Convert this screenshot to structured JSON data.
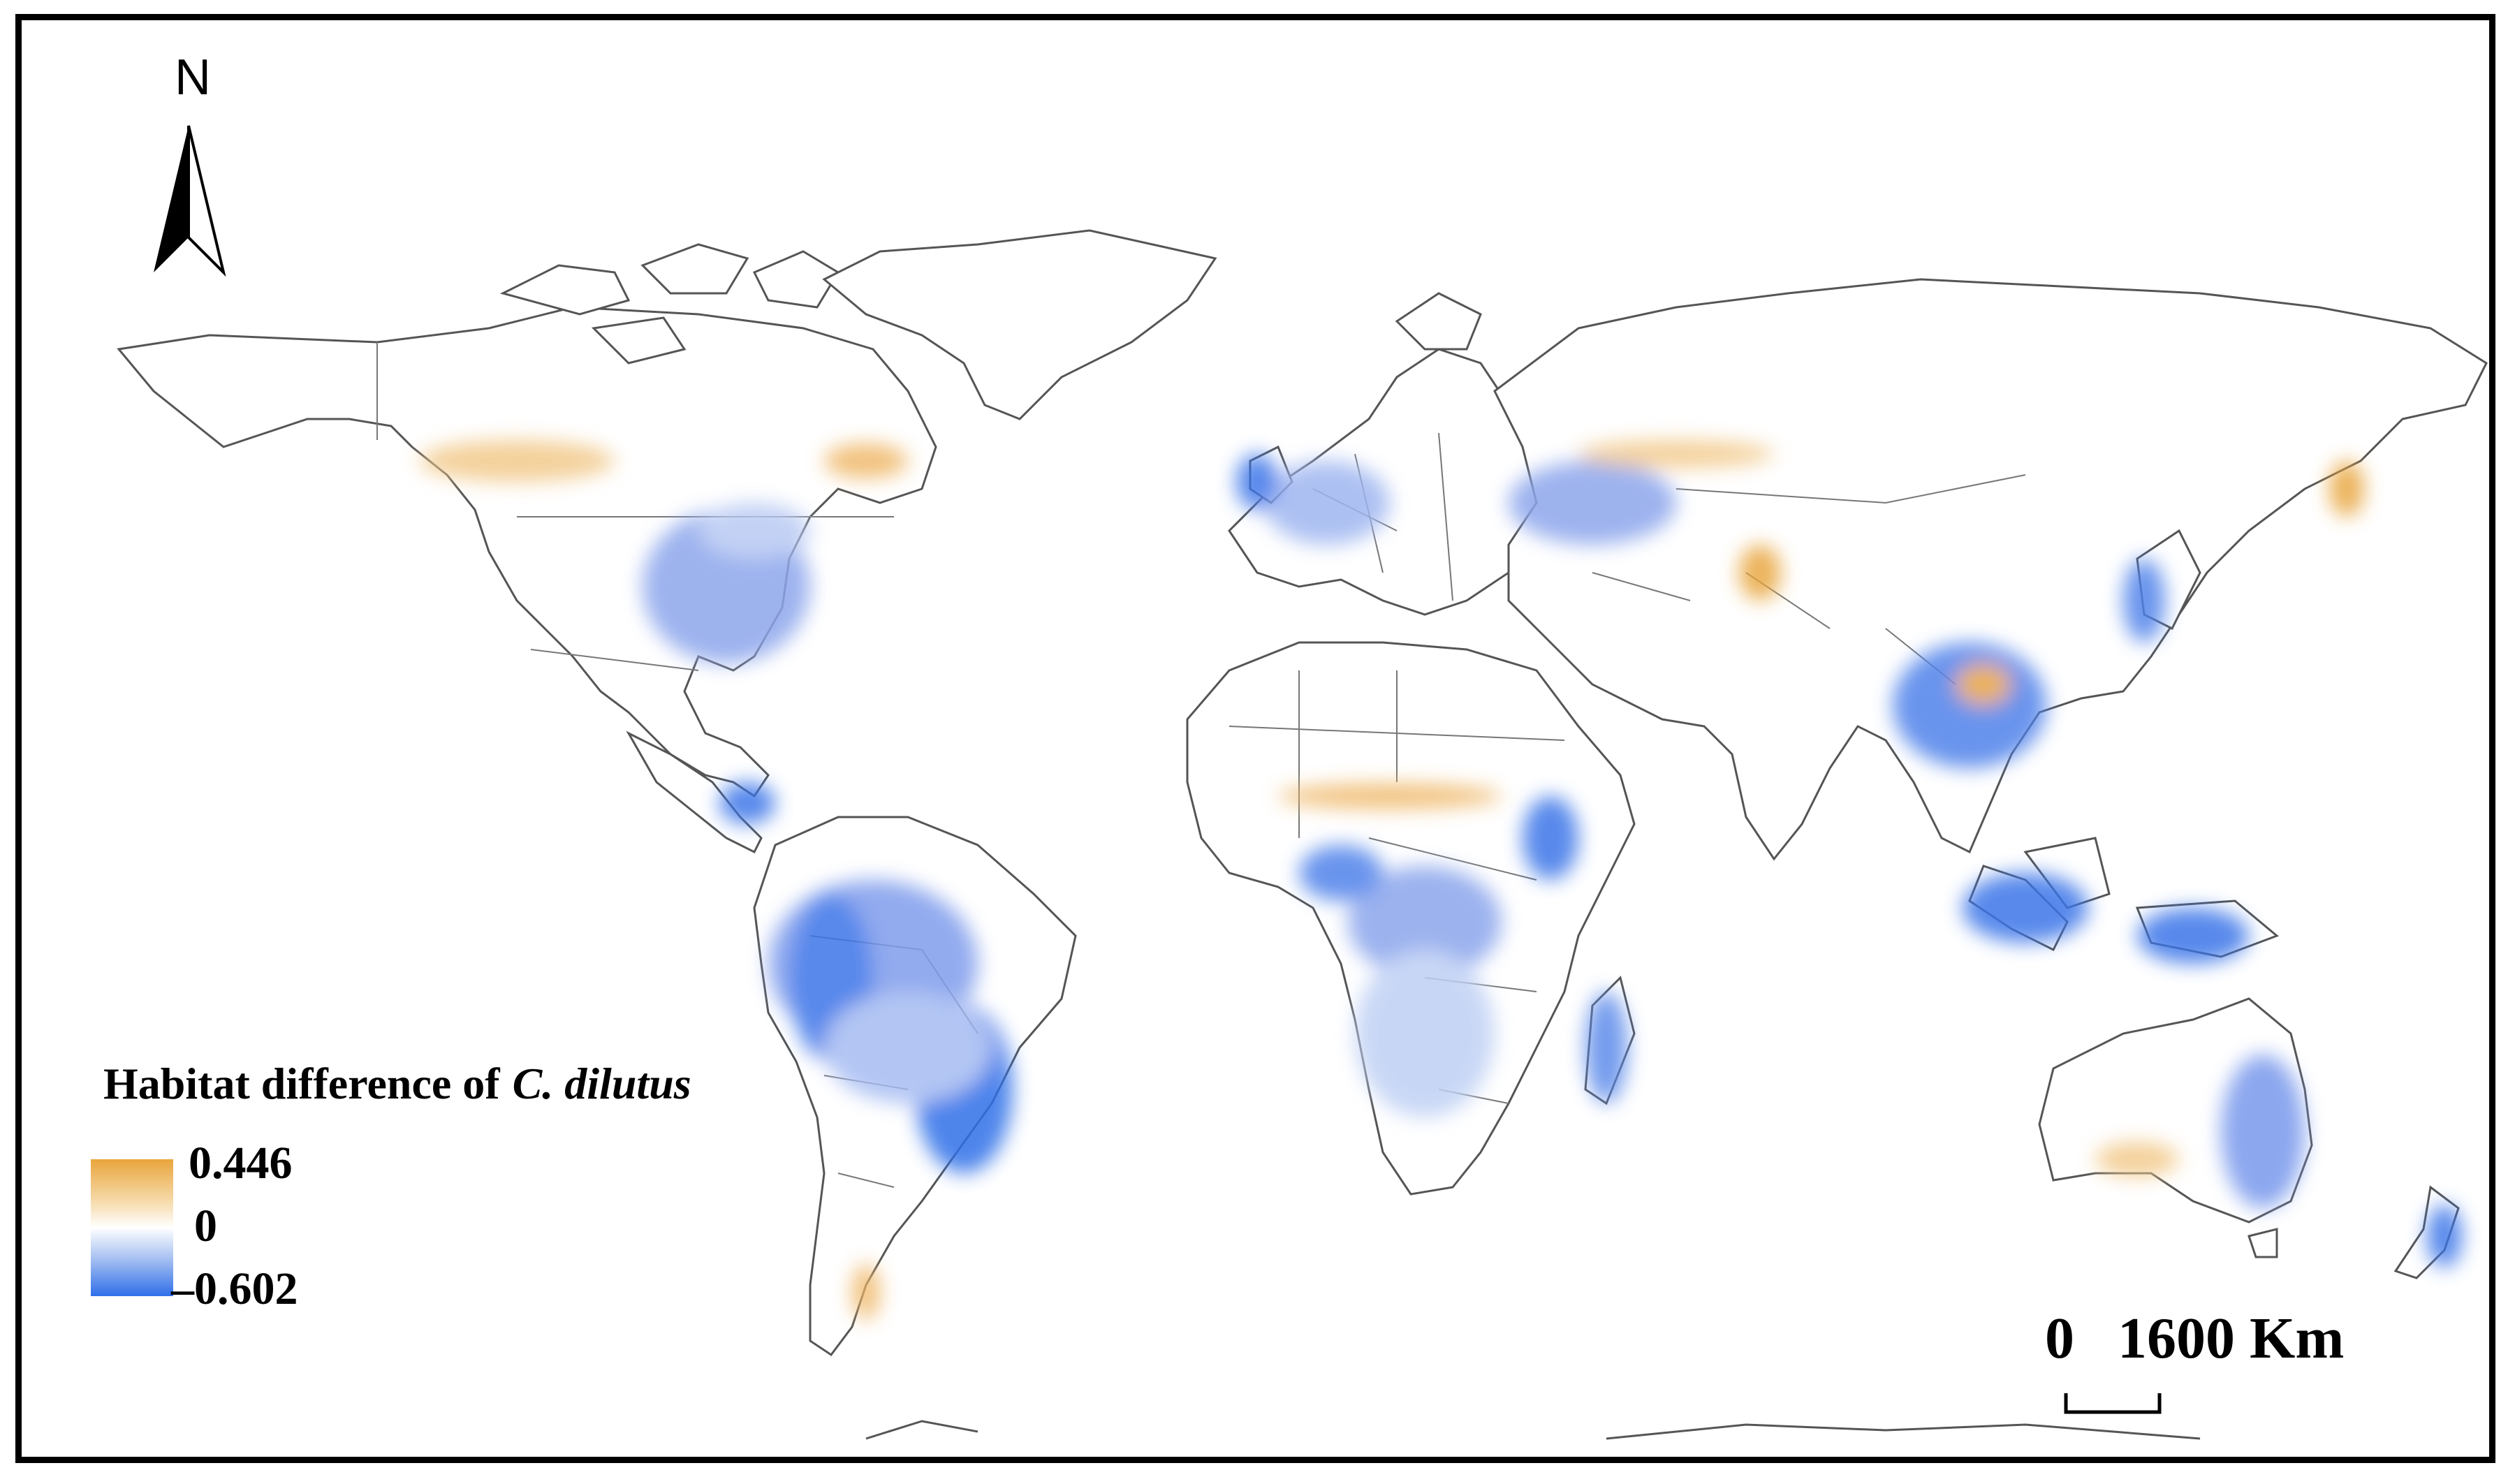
{
  "map": {
    "north_label": "N",
    "legend": {
      "title_prefix": "Habitat difference of",
      "title_species": "C. dilutus",
      "max_label": "0.446",
      "mid_label": "0",
      "min_label": "–0.602",
      "colors": {
        "high": "#e8a53c",
        "mid": "#ffffff",
        "low": "#2f6fe8"
      }
    },
    "scale_bar": {
      "start_label": "0",
      "end_label": "1600 Km"
    },
    "colors": {
      "outline": "#555555",
      "border": "#777777",
      "frame": "#000000"
    }
  }
}
